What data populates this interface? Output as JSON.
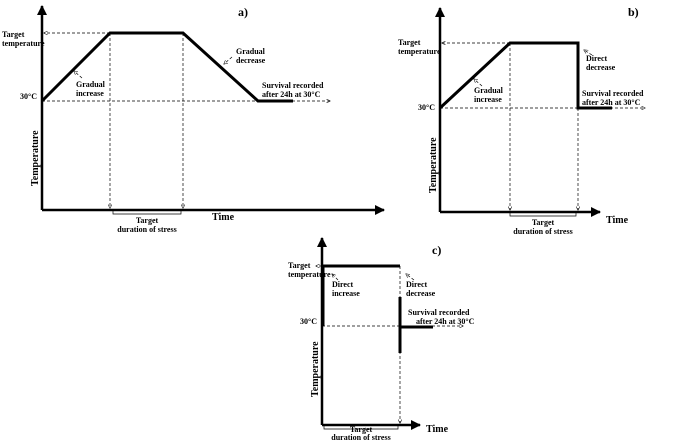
{
  "panels": [
    {
      "label": "a)",
      "y_axis": "Temperature",
      "x_axis": "Time",
      "target": [
        "Target",
        "temperature"
      ],
      "baseline": "30°C",
      "rise": [
        "Gradual",
        "increase"
      ],
      "fall": [
        "Gradual",
        "decrease"
      ],
      "survival": [
        "Survival recorded",
        "after 24h at 30°C"
      ],
      "duration": [
        "Target",
        "duration of stress"
      ]
    },
    {
      "label": "b)",
      "y_axis": "Temperature",
      "x_axis": "Time",
      "target": [
        "Target",
        "temperature"
      ],
      "baseline": "30°C",
      "rise": [
        "Gradual",
        "increase"
      ],
      "fall": [
        "Direct",
        "decrease"
      ],
      "survival": [
        "Survival recorded",
        "after 24h at 30°C"
      ],
      "duration": [
        "Target",
        "duration of stress"
      ]
    },
    {
      "label": "c)",
      "y_axis": "Temperature",
      "x_axis": "Time",
      "target": [
        "Target",
        "temperature"
      ],
      "baseline": "30°C",
      "rise": [
        "Direct",
        "increase"
      ],
      "fall": [
        "Direct",
        "decrease"
      ],
      "survival": [
        "Survival recorded",
        "after 24h at 30°C"
      ],
      "duration": [
        "Target",
        "duration of stress"
      ]
    }
  ]
}
